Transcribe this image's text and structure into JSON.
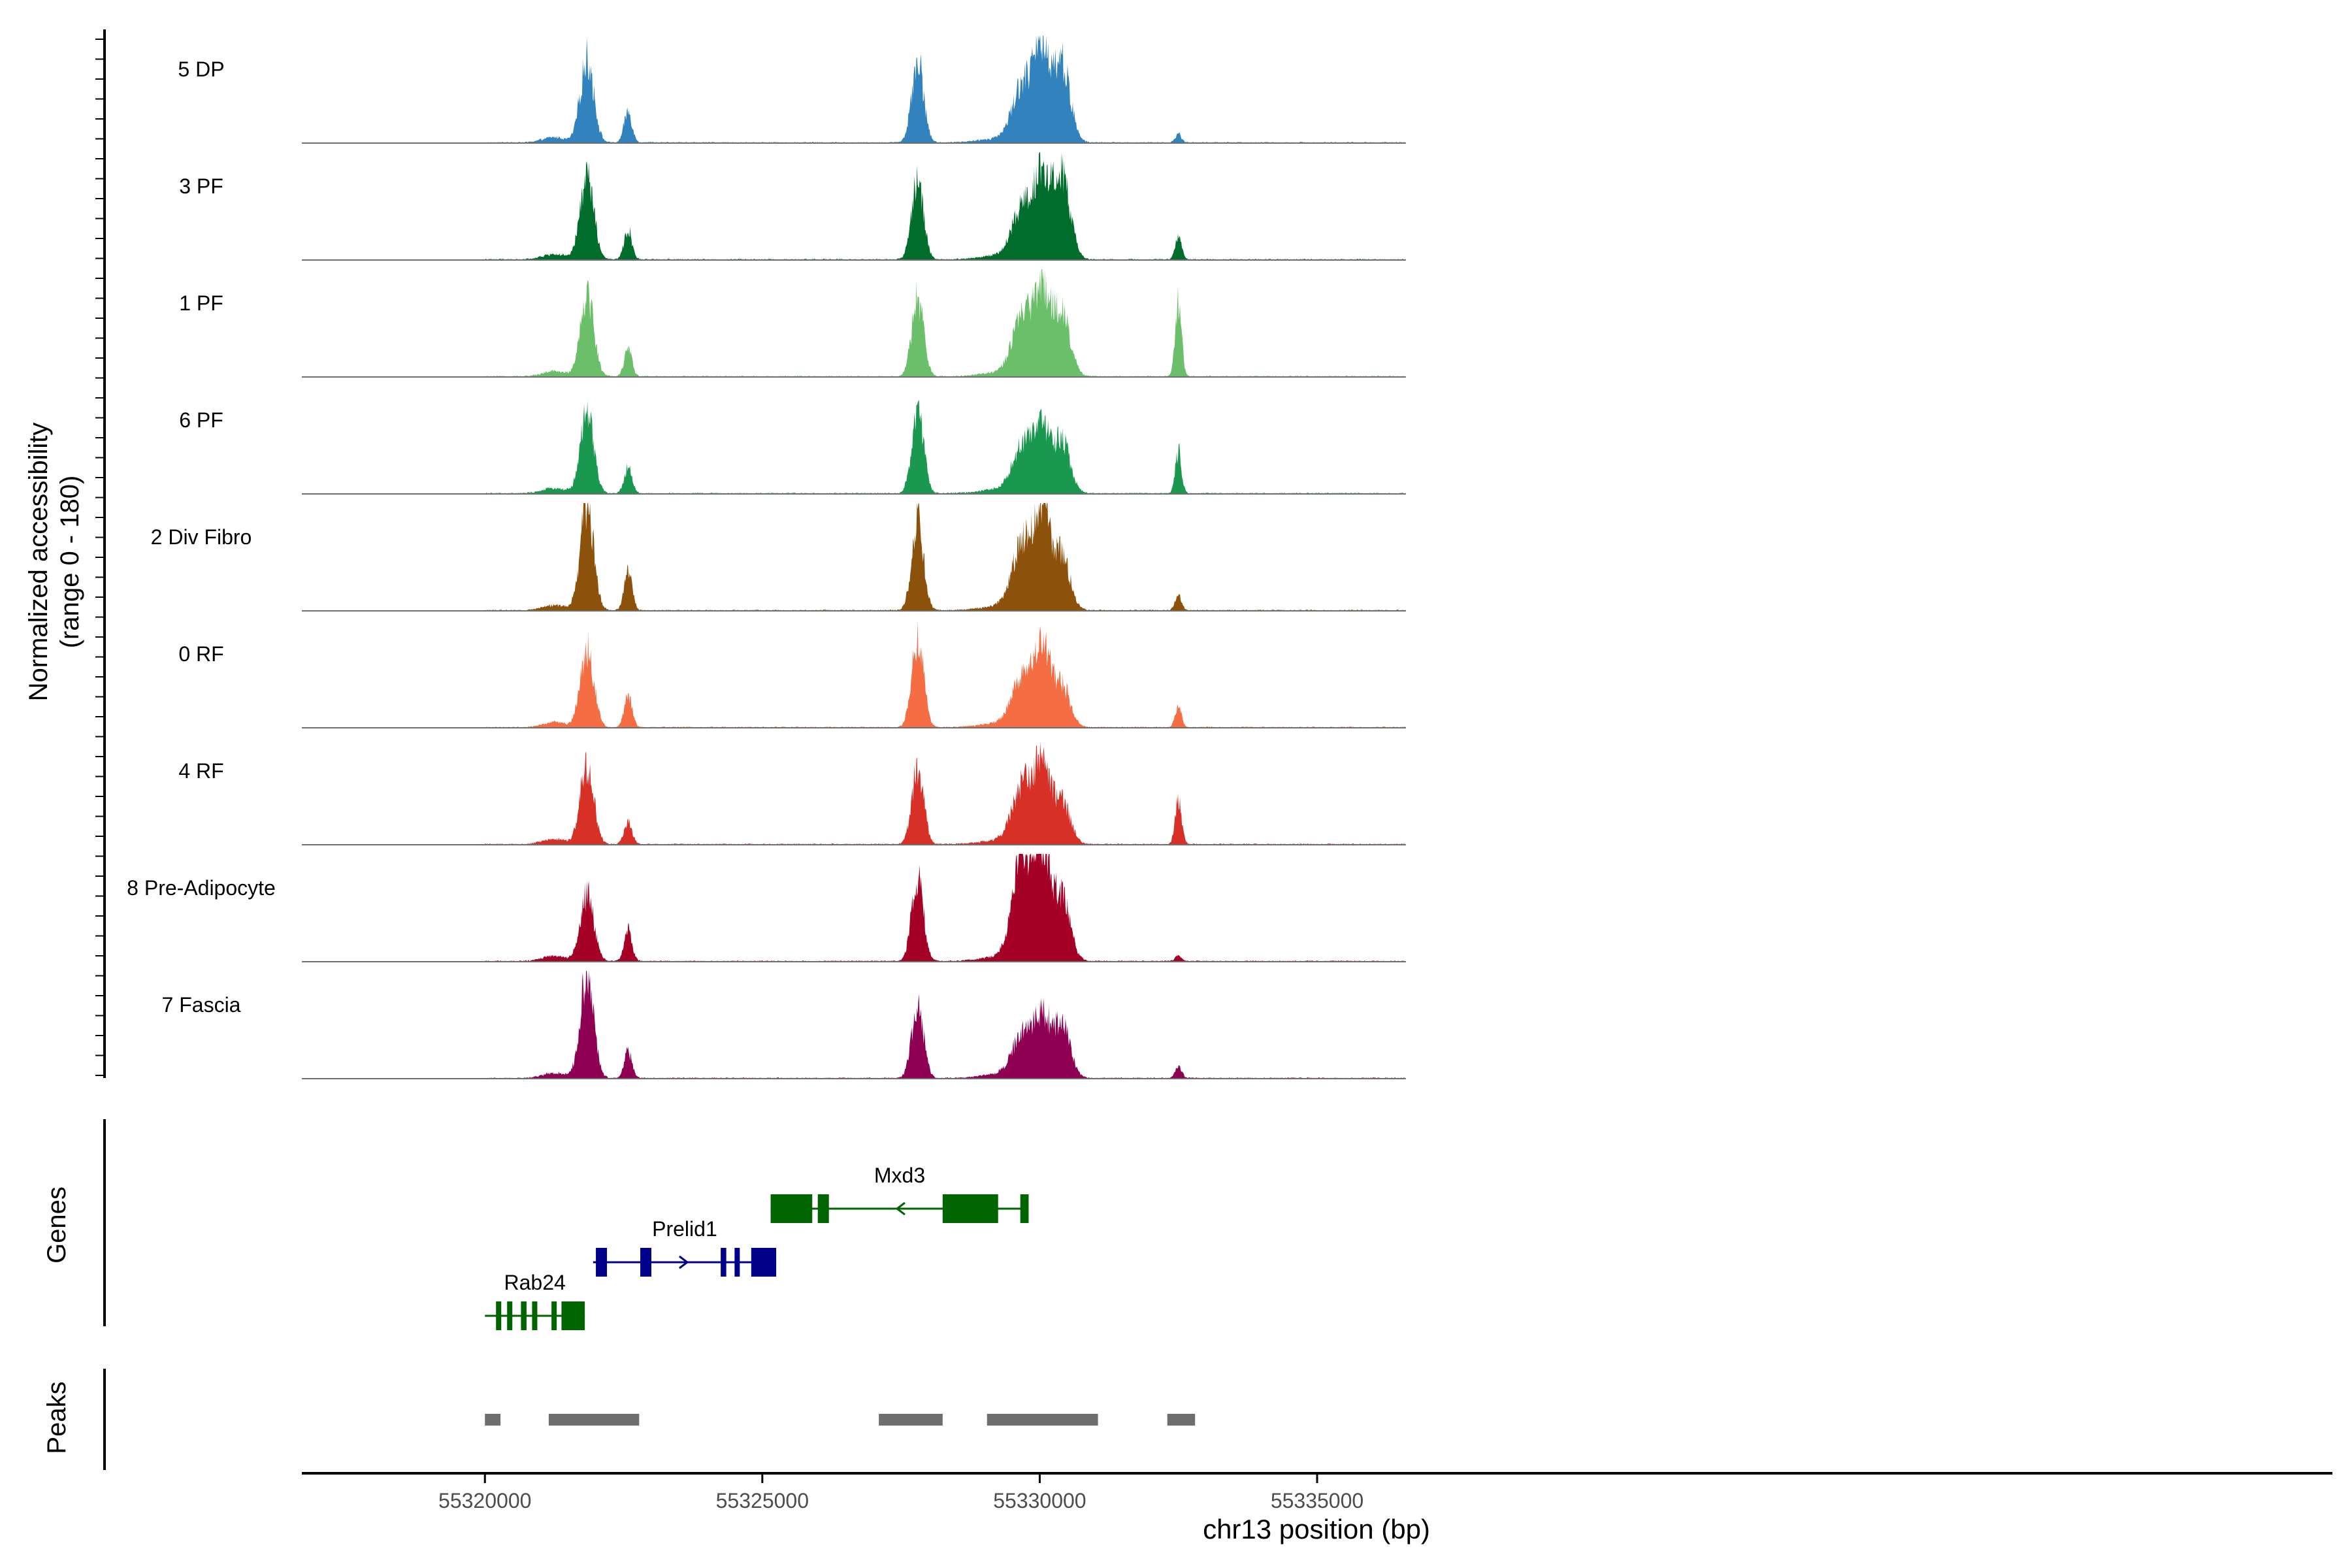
{
  "chart_data": {
    "type": "area",
    "title": "",
    "xlabel": "chr13 position (bp)",
    "ylabel_line1": "Normalized accessibility",
    "ylabel_line2": "(range 0 - 180)",
    "genes_label": "Genes",
    "peaks_label": "Peaks",
    "xlim": [
      55316700,
      55353300
    ],
    "data_range": [
      55320000,
      55336600
    ],
    "ylim": [
      0,
      180
    ],
    "x_ticks": [
      {
        "value": 55320000,
        "label": "55320000"
      },
      {
        "value": 55325000,
        "label": "55325000"
      },
      {
        "value": 55330000,
        "label": "55330000"
      },
      {
        "value": 55335000,
        "label": "55335000"
      }
    ],
    "peak_centers": [
      55321840,
      55322580,
      55327800,
      55329700,
      55330050,
      55330400,
      55332500
    ],
    "series": [
      {
        "name": "5 DP",
        "color": "#3182bd",
        "heights": [
          0.8,
          0.3,
          0.8,
          0.55,
          0.85,
          0.75,
          0.08
        ]
      },
      {
        "name": "3 PF",
        "color": "#006d2c",
        "heights": [
          0.8,
          0.28,
          0.75,
          0.5,
          0.75,
          0.8,
          0.22
        ]
      },
      {
        "name": "1 PF",
        "color": "#6bbf6a",
        "heights": [
          0.8,
          0.25,
          0.75,
          0.55,
          0.8,
          0.6,
          0.7
        ]
      },
      {
        "name": "6 PF",
        "color": "#1a9850",
        "heights": [
          0.75,
          0.25,
          0.8,
          0.45,
          0.55,
          0.5,
          0.4
        ]
      },
      {
        "name": "2 Div Fibro",
        "color": "#8c510a",
        "heights": [
          1.0,
          0.4,
          0.85,
          0.65,
          0.9,
          0.5,
          0.15
        ]
      },
      {
        "name": "0 RF",
        "color": "#f46d43",
        "heights": [
          0.75,
          0.3,
          0.85,
          0.5,
          0.7,
          0.4,
          0.2
        ]
      },
      {
        "name": "4 RF",
        "color": "#d73027",
        "heights": [
          0.75,
          0.22,
          0.75,
          0.55,
          0.7,
          0.4,
          0.45
        ]
      },
      {
        "name": "8 Pre-Adipocyte",
        "color": "#a50026",
        "heights": [
          0.65,
          0.3,
          0.8,
          1.0,
          0.95,
          0.6,
          0.05
        ]
      },
      {
        "name": "7 Fascia",
        "color": "#8e0152",
        "heights": [
          1.0,
          0.25,
          0.7,
          0.4,
          0.55,
          0.5,
          0.12
        ]
      }
    ],
    "genes": [
      {
        "name": "Mxd3",
        "strand": "-",
        "color": "#006400",
        "row": 0,
        "start": 55325150,
        "end": 55329800,
        "exons": [
          [
            55325150,
            55325900
          ],
          [
            55326000,
            55326200
          ],
          [
            55328250,
            55329250
          ],
          [
            55329650,
            55329800
          ]
        ]
      },
      {
        "name": "Prelid1",
        "strand": "+",
        "color": "#00008b",
        "row": 1,
        "start": 55321950,
        "end": 55325250,
        "exons": [
          [
            55322000,
            55322200
          ],
          [
            55322800,
            55323000
          ],
          [
            55324250,
            55324350
          ],
          [
            55324500,
            55324550
          ],
          [
            55324800,
            55325250
          ]
        ]
      },
      {
        "name": "Rab24",
        "strand": "-",
        "color": "#006400",
        "row": 2,
        "start": 55320000,
        "end": 55321800,
        "exons": [
          [
            55320200,
            55320260
          ],
          [
            55320400,
            55320440
          ],
          [
            55320650,
            55320750
          ],
          [
            55320850,
            55320900
          ],
          [
            55321200,
            55321280
          ],
          [
            55321380,
            55321800
          ]
        ]
      }
    ],
    "peaks": [
      [
        55320000,
        55320280
      ],
      [
        55321150,
        55322780
      ],
      [
        55327100,
        55328250
      ],
      [
        55329050,
        55331050
      ],
      [
        55332300,
        55332800
      ]
    ]
  }
}
